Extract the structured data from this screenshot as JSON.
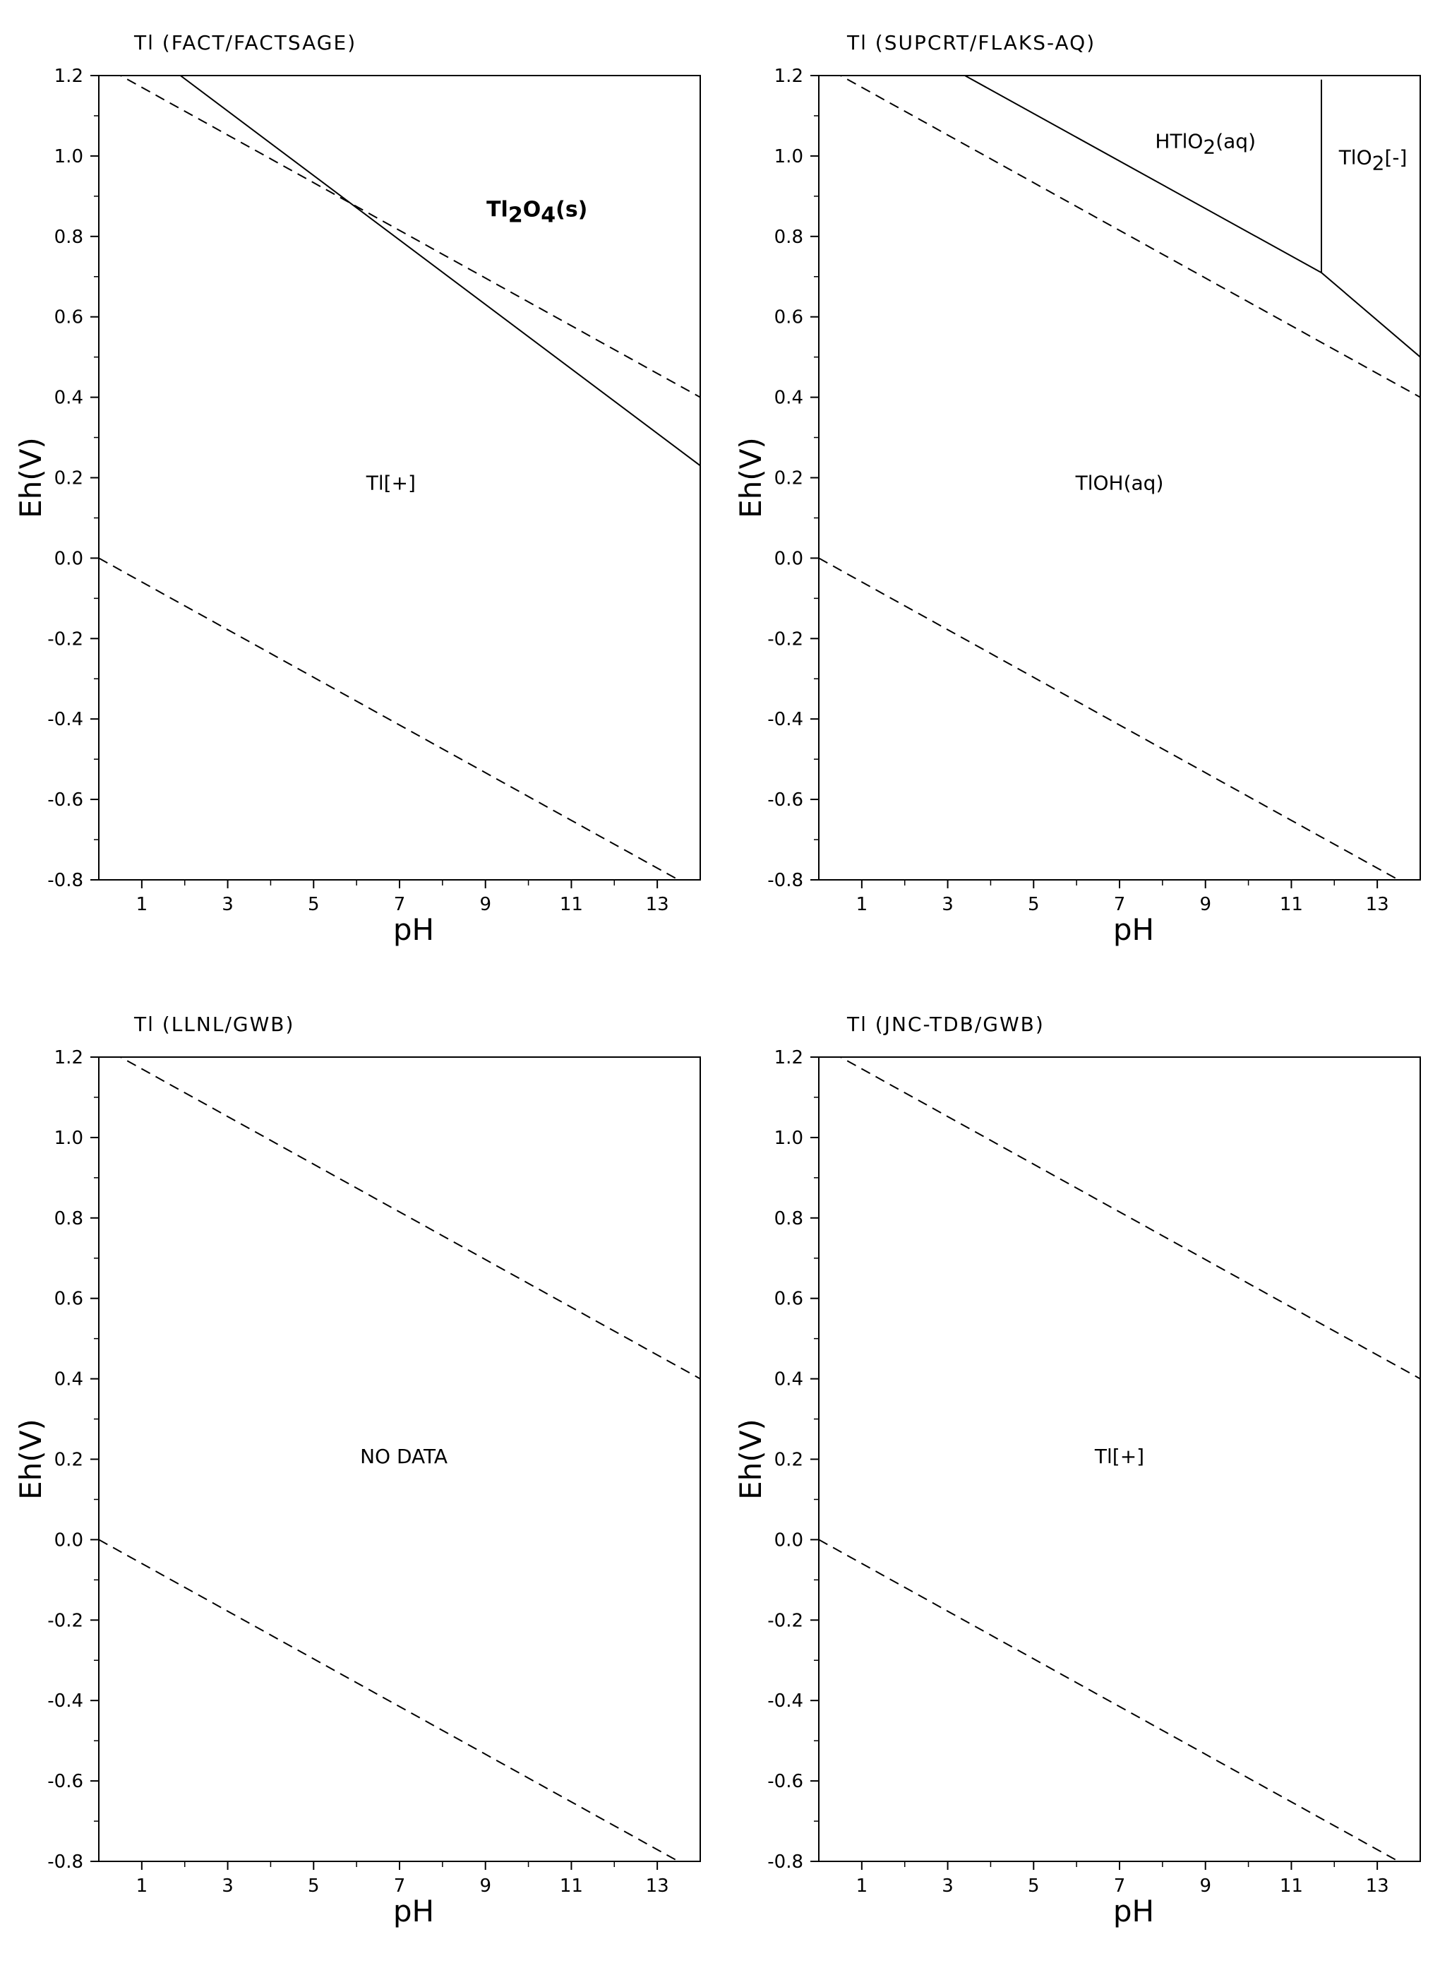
{
  "chart_data": [
    {
      "type": "line",
      "title": "Tl (FACT/FACTSAGE)",
      "xlabel": "pH",
      "ylabel": "Eh(V)",
      "xlim": [
        0,
        14
      ],
      "ylim": [
        -0.8,
        1.2
      ],
      "x_ticks": [
        1,
        3,
        5,
        7,
        9,
        11,
        13
      ],
      "y_ticks": [
        1.2,
        1.0,
        0.8,
        0.6,
        0.4,
        0.2,
        0.0,
        -0.2,
        -0.4,
        -0.6,
        -0.8
      ],
      "y_tick_labels": [
        "1.2",
        "1.0",
        "0.8",
        "0.6",
        "0.4",
        "0.2",
        "0.0",
        "-0.2",
        "-0.4",
        "-0.6",
        "-0.8"
      ],
      "series": [
        {
          "style": "dashed",
          "points": [
            [
              0,
              1.23
            ],
            [
              14,
              0.4
            ]
          ]
        },
        {
          "style": "dashed",
          "points": [
            [
              0,
              0.0
            ],
            [
              14,
              -0.83
            ]
          ]
        },
        {
          "style": "solid",
          "points": [
            [
              1.9,
              1.2
            ],
            [
              14,
              0.23
            ]
          ]
        }
      ],
      "labels": [
        {
          "text": "Tl[+]",
          "x": 6.8,
          "y": 0.17
        },
        {
          "text": "Tl",
          "sub1": "2",
          "mid": "O",
          "sub2": "4",
          "end": "(s)",
          "bold": true,
          "x": 10.2,
          "y": 0.85
        }
      ]
    },
    {
      "type": "line",
      "title": "Tl (SUPCRT/FLAKS-AQ)",
      "xlabel": "pH",
      "ylabel": "Eh(V)",
      "xlim": [
        0,
        14
      ],
      "ylim": [
        -0.8,
        1.2
      ],
      "x_ticks": [
        1,
        3,
        5,
        7,
        9,
        11,
        13
      ],
      "y_ticks": [
        1.2,
        1.0,
        0.8,
        0.6,
        0.4,
        0.2,
        0.0,
        -0.2,
        -0.4,
        -0.6,
        -0.8
      ],
      "y_tick_labels": [
        "1.2",
        "1.0",
        "0.8",
        "0.6",
        "0.4",
        "0.2",
        "0.0",
        "-0.2",
        "-0.4",
        "-0.6",
        "-0.8"
      ],
      "series": [
        {
          "style": "dashed",
          "points": [
            [
              0,
              1.23
            ],
            [
              14,
              0.4
            ]
          ]
        },
        {
          "style": "dashed",
          "points": [
            [
              0,
              0.0
            ],
            [
              14,
              -0.83
            ]
          ]
        },
        {
          "style": "solid",
          "points": [
            [
              3.4,
              1.2
            ],
            [
              11.7,
              0.71
            ],
            [
              14,
              0.5
            ]
          ]
        },
        {
          "style": "solid",
          "points": [
            [
              11.7,
              1.19
            ],
            [
              11.7,
              0.71
            ]
          ]
        }
      ],
      "labels": [
        {
          "text": "TlOH(aq)",
          "x": 7.0,
          "y": 0.17
        },
        {
          "text": "HTlO",
          "sub1": "2",
          "end": "(aq)",
          "x": 9.0,
          "y": 1.02
        },
        {
          "text": "TlO",
          "sub1": "2",
          "end": "[-]",
          "x": 12.9,
          "y": 0.98
        }
      ]
    },
    {
      "type": "line",
      "title": "Tl (LLNL/GWB)",
      "xlabel": "pH",
      "ylabel": "Eh(V)",
      "xlim": [
        0,
        14
      ],
      "ylim": [
        -0.8,
        1.2
      ],
      "x_ticks": [
        1,
        3,
        5,
        7,
        9,
        11,
        13
      ],
      "y_ticks": [
        1.2,
        1.0,
        0.8,
        0.6,
        0.4,
        0.2,
        0.0,
        -0.2,
        -0.4,
        -0.6,
        -0.8
      ],
      "y_tick_labels": [
        "1.2",
        "1.0",
        "0.8",
        "0.6",
        "0.4",
        "0.2",
        "0.0",
        "-0.2",
        "-0.4",
        "-0.6",
        "-0.8"
      ],
      "series": [
        {
          "style": "dashed",
          "points": [
            [
              0,
              1.23
            ],
            [
              14,
              0.4
            ]
          ]
        },
        {
          "style": "dashed",
          "points": [
            [
              0,
              0.0
            ],
            [
              14,
              -0.83
            ]
          ]
        }
      ],
      "labels": [
        {
          "text": "NO DATA",
          "x": 7.1,
          "y": 0.19
        }
      ]
    },
    {
      "type": "line",
      "title": "Tl (JNC-TDB/GWB)",
      "xlabel": "pH",
      "ylabel": "Eh(V)",
      "xlim": [
        0,
        14
      ],
      "ylim": [
        -0.8,
        1.2
      ],
      "x_ticks": [
        1,
        3,
        5,
        7,
        9,
        11,
        13
      ],
      "y_ticks": [
        1.2,
        1.0,
        0.8,
        0.6,
        0.4,
        0.2,
        0.0,
        -0.2,
        -0.4,
        -0.6,
        -0.8
      ],
      "y_tick_labels": [
        "1.2",
        "1.0",
        "0.8",
        "0.6",
        "0.4",
        "0.2",
        "0.0",
        "-0.2",
        "-0.4",
        "-0.6",
        "-0.8"
      ],
      "series": [
        {
          "style": "dashed",
          "points": [
            [
              0,
              1.23
            ],
            [
              14,
              0.4
            ]
          ]
        },
        {
          "style": "dashed",
          "points": [
            [
              0,
              0.0
            ],
            [
              14,
              -0.83
            ]
          ]
        }
      ],
      "labels": [
        {
          "text": "Tl[+]",
          "x": 7.0,
          "y": 0.19
        }
      ]
    }
  ]
}
